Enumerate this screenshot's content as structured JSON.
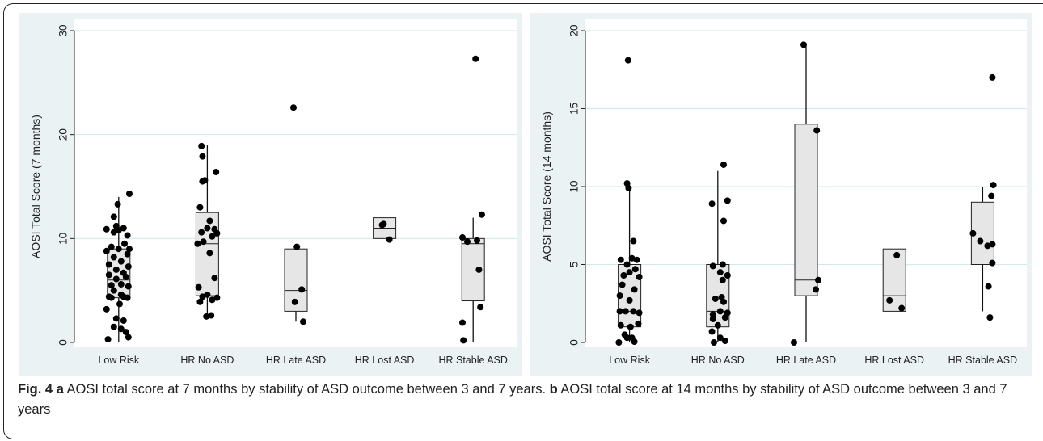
{
  "colors": {
    "panel_bg": "#eaf2f3",
    "plot_bg": "#ffffff",
    "gridline": "#d7e6e8",
    "box_fill": "#e6e6e6",
    "point": "#000000"
  },
  "chart_data": [
    {
      "type": "box",
      "panel_letter": "a",
      "ylabel": "AOSI Total Score (7 months)",
      "xlabel": "",
      "ylim": [
        0,
        30
      ],
      "yticks": [
        0,
        10,
        20,
        30
      ],
      "grid": true,
      "categories": [
        "Low Risk",
        "HR No ASD",
        "HR Late ASD",
        "HR Lost ASD",
        "HR Stable ASD"
      ],
      "boxes": [
        {
          "q1": 4.3,
          "median": 6,
          "q3": 9,
          "whisker_low": 0,
          "whisker_high": 14
        },
        {
          "q1": 4.5,
          "median": 9.5,
          "q3": 12.5,
          "whisker_low": 2.5,
          "whisker_high": 19
        },
        {
          "q1": 3,
          "median": 5,
          "q3": 9,
          "whisker_low": 2,
          "whisker_high": 9
        },
        {
          "q1": 10,
          "median": 11,
          "q3": 12,
          "whisker_low": 10,
          "whisker_high": 12
        },
        {
          "q1": 4,
          "median": 9.5,
          "q3": 10,
          "whisker_low": 0,
          "whisker_high": 12
        }
      ],
      "points": [
        [
          [
            -0.22,
            0.3
          ],
          [
            0.2,
            0.5
          ],
          [
            -0.1,
            1.5
          ],
          [
            0.15,
            1.0
          ],
          [
            0.05,
            1.3
          ],
          [
            -0.05,
            2.3
          ],
          [
            0.1,
            2.1
          ],
          [
            -0.25,
            3.2
          ],
          [
            0.02,
            3.7
          ],
          [
            0.18,
            4.3
          ],
          [
            -0.15,
            4.3
          ],
          [
            -0.2,
            4.4
          ],
          [
            0.1,
            4.4
          ],
          [
            0.05,
            4.6
          ],
          [
            -0.1,
            5.0
          ],
          [
            0.2,
            5.4
          ],
          [
            -0.15,
            5.5
          ],
          [
            0.05,
            5.6
          ],
          [
            -0.05,
            6.1
          ],
          [
            0.15,
            6.3
          ],
          [
            -0.2,
            6.5
          ],
          [
            0.1,
            6.7
          ],
          [
            -0.05,
            7.0
          ],
          [
            0.2,
            7.3
          ],
          [
            -0.2,
            7.5
          ],
          [
            0.05,
            7.8
          ],
          [
            -0.1,
            8.2
          ],
          [
            0.18,
            8.5
          ],
          [
            -0.25,
            8.8
          ],
          [
            0.0,
            9.0
          ],
          [
            0.22,
            9.0
          ],
          [
            -0.15,
            9.2
          ],
          [
            0.12,
            9.5
          ],
          [
            0.18,
            10.3
          ],
          [
            -0.1,
            10.6
          ],
          [
            0.0,
            10.8
          ],
          [
            0.1,
            11.0
          ],
          [
            -0.25,
            10.9
          ],
          [
            -0.05,
            11.2
          ],
          [
            -0.1,
            12.1
          ],
          [
            -0.02,
            13.3
          ],
          [
            0.22,
            14.3
          ]
        ],
        [
          [
            0.08,
            2.6
          ],
          [
            -0.02,
            2.5
          ],
          [
            -0.15,
            3.9
          ],
          [
            0.1,
            4.1
          ],
          [
            0.2,
            4.3
          ],
          [
            -0.1,
            4.4
          ],
          [
            0.0,
            4.6
          ],
          [
            -0.18,
            5.3
          ],
          [
            0.15,
            6.2
          ],
          [
            0.05,
            8.6
          ],
          [
            -0.2,
            9.5
          ],
          [
            -0.08,
            9.7
          ],
          [
            0.1,
            10.2
          ],
          [
            0.2,
            10.5
          ],
          [
            -0.12,
            10.6
          ],
          [
            0.15,
            10.9
          ],
          [
            0.0,
            11.0
          ],
          [
            0.05,
            11.7
          ],
          [
            -0.15,
            13.0
          ],
          [
            -0.1,
            15.5
          ],
          [
            -0.05,
            15.6
          ],
          [
            0.18,
            16.4
          ],
          [
            -0.1,
            17.9
          ],
          [
            -0.12,
            18.9
          ]
        ],
        [
          [
            0.15,
            2.0
          ],
          [
            -0.02,
            3.9
          ],
          [
            0.12,
            5.1
          ],
          [
            0.02,
            9.2
          ],
          [
            -0.05,
            22.6
          ]
        ],
        [
          [
            0.1,
            9.9
          ],
          [
            -0.02,
            11.4
          ],
          [
            -0.05,
            11.3
          ]
        ],
        [
          [
            -0.2,
            0.2
          ],
          [
            -0.22,
            1.9
          ],
          [
            0.15,
            3.4
          ],
          [
            0.12,
            7.0
          ],
          [
            -0.12,
            9.7
          ],
          [
            0.08,
            9.8
          ],
          [
            -0.22,
            10.1
          ],
          [
            0.18,
            12.3
          ],
          [
            0.05,
            27.3
          ]
        ]
      ]
    },
    {
      "type": "box",
      "panel_letter": "b",
      "ylabel": "AOSI Total Score (14 months)",
      "xlabel": "",
      "ylim": [
        0,
        20
      ],
      "yticks": [
        0,
        5,
        10,
        15,
        20
      ],
      "grid": true,
      "categories": [
        "Low Risk",
        "HR No ASD",
        "HR Late ASD",
        "HR Lost ASD",
        "HR Stable ASD"
      ],
      "boxes": [
        {
          "q1": 1,
          "median": 2,
          "q3": 5,
          "whisker_low": 0,
          "whisker_high": 10
        },
        {
          "q1": 1,
          "median": 2,
          "q3": 5,
          "whisker_low": 0,
          "whisker_high": 11
        },
        {
          "q1": 3,
          "median": 4,
          "q3": 14,
          "whisker_low": 0,
          "whisker_high": 19
        },
        {
          "q1": 2,
          "median": 3,
          "q3": 6,
          "whisker_low": 2,
          "whisker_high": 6
        },
        {
          "q1": 5,
          "median": 6.5,
          "q3": 9,
          "whisker_low": 2,
          "whisker_high": 10
        }
      ],
      "points": [
        [
          [
            -0.22,
            0.0
          ],
          [
            0.1,
            0.05
          ],
          [
            -0.05,
            0.3
          ],
          [
            0.05,
            0.3
          ],
          [
            -0.1,
            0.5
          ],
          [
            0.02,
            1.0
          ],
          [
            -0.18,
            1.1
          ],
          [
            0.18,
            1.2
          ],
          [
            -0.2,
            2.0
          ],
          [
            -0.08,
            2.0
          ],
          [
            0.08,
            2.0
          ],
          [
            0.2,
            1.9
          ],
          [
            -0.2,
            3.0
          ],
          [
            0.0,
            2.7
          ],
          [
            0.1,
            3.4
          ],
          [
            -0.15,
            3.7
          ],
          [
            0.2,
            4.2
          ],
          [
            -0.12,
            4.3
          ],
          [
            0.0,
            4.5
          ],
          [
            0.12,
            4.7
          ],
          [
            -0.05,
            5.0
          ],
          [
            -0.18,
            5.3
          ],
          [
            0.05,
            5.4
          ],
          [
            0.15,
            5.3
          ],
          [
            0.08,
            6.5
          ],
          [
            -0.02,
            9.9
          ],
          [
            -0.05,
            10.2
          ],
          [
            -0.03,
            18.1
          ]
        ],
        [
          [
            -0.08,
            0.0
          ],
          [
            0.15,
            0.1
          ],
          [
            0.05,
            0.3
          ],
          [
            -0.12,
            0.7
          ],
          [
            0.0,
            1.1
          ],
          [
            -0.1,
            1.5
          ],
          [
            0.15,
            1.6
          ],
          [
            -0.1,
            1.8
          ],
          [
            0.2,
            1.9
          ],
          [
            0.05,
            2.0
          ],
          [
            0.12,
            2.6
          ],
          [
            -0.05,
            2.8
          ],
          [
            0.08,
            2.9
          ],
          [
            0.1,
            4.0
          ],
          [
            0.2,
            4.3
          ],
          [
            0.05,
            4.5
          ],
          [
            -0.1,
            4.9
          ],
          [
            0.1,
            5.0
          ],
          [
            0.12,
            7.8
          ],
          [
            -0.12,
            8.9
          ],
          [
            0.2,
            9.1
          ],
          [
            0.12,
            11.4
          ]
        ],
        [
          [
            -0.25,
            0.0
          ],
          [
            0.2,
            3.4
          ],
          [
            0.25,
            4.0
          ],
          [
            0.22,
            13.6
          ],
          [
            -0.05,
            19.1
          ]
        ],
        [
          [
            -0.1,
            2.7
          ],
          [
            0.15,
            2.2
          ],
          [
            0.05,
            5.6
          ]
        ],
        [
          [
            0.15,
            1.6
          ],
          [
            0.12,
            3.6
          ],
          [
            0.2,
            5.1
          ],
          [
            0.1,
            6.2
          ],
          [
            -0.2,
            7.0
          ],
          [
            -0.05,
            6.5
          ],
          [
            0.2,
            6.3
          ],
          [
            0.18,
            9.4
          ],
          [
            0.22,
            10.1
          ],
          [
            0.2,
            17.0
          ]
        ]
      ]
    }
  ],
  "caption": {
    "fig_label": "Fig. 4",
    "a_letter": "a",
    "a_text": " AOSI total score at 7 months by stability of ASD outcome between 3 and 7 years. ",
    "b_letter": "b",
    "b_text": " AOSI total score at 14 months by stability of ASD outcome between 3 and 7 years"
  }
}
